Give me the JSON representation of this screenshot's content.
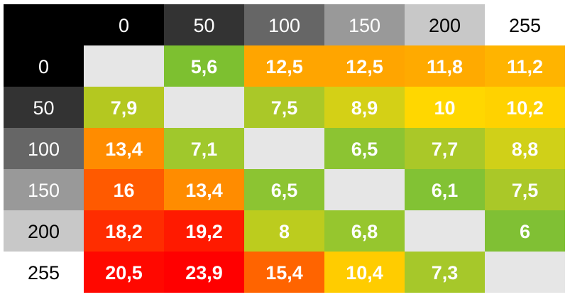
{
  "chart_data": {
    "type": "heatmap",
    "column_labels": [
      "0",
      "50",
      "100",
      "150",
      "200",
      "255"
    ],
    "row_labels": [
      "0",
      "50",
      "100",
      "150",
      "200",
      "255"
    ],
    "header_colors": {
      "0": "#000000",
      "50": "#333333",
      "100": "#666666",
      "150": "#999999",
      "200": "#c8c8c8",
      "255": "#ffffff"
    },
    "header_text_colors": {
      "0": "#ffffff",
      "50": "#ffffff",
      "100": "#ffffff",
      "150": "#ffffff",
      "200": "#000000",
      "255": "#000000"
    },
    "diagonal_color": "#e6e6e6",
    "cell_text_color": "#ffffff",
    "rows": [
      {
        "label": "0",
        "cells": [
          {
            "text": "",
            "color": "#e6e6e6"
          },
          {
            "text": "5,6",
            "color": "#7dc030"
          },
          {
            "text": "12,5",
            "color": "#ffa500"
          },
          {
            "text": "12,5",
            "color": "#ffa500"
          },
          {
            "text": "11,8",
            "color": "#ffaa00"
          },
          {
            "text": "11,2",
            "color": "#ffb400"
          }
        ]
      },
      {
        "label": "50",
        "cells": [
          {
            "text": "7,9",
            "color": "#b4c820"
          },
          {
            "text": "",
            "color": "#e6e6e6"
          },
          {
            "text": "7,5",
            "color": "#aac828"
          },
          {
            "text": "8,9",
            "color": "#d4d016"
          },
          {
            "text": "10",
            "color": "#ffd700"
          },
          {
            "text": "10,2",
            "color": "#ffd200"
          }
        ]
      },
      {
        "label": "100",
        "cells": [
          {
            "text": "13,4",
            "color": "#ff8c00"
          },
          {
            "text": "7,1",
            "color": "#a0c82c"
          },
          {
            "text": "",
            "color": "#e6e6e6"
          },
          {
            "text": "6,5",
            "color": "#8cc432"
          },
          {
            "text": "7,7",
            "color": "#aac828"
          },
          {
            "text": "8,8",
            "color": "#d0d018"
          }
        ]
      },
      {
        "label": "150",
        "cells": [
          {
            "text": "16",
            "color": "#ff5a00"
          },
          {
            "text": "13,4",
            "color": "#ff8c00"
          },
          {
            "text": "6,5",
            "color": "#8cc432"
          },
          {
            "text": "",
            "color": "#e6e6e6"
          },
          {
            "text": "6,1",
            "color": "#82c234"
          },
          {
            "text": "7,5",
            "color": "#aac828"
          }
        ]
      },
      {
        "label": "200",
        "cells": [
          {
            "text": "18,2",
            "color": "#ff2d00"
          },
          {
            "text": "19,2",
            "color": "#ff1a00"
          },
          {
            "text": "8",
            "color": "#bccc1e"
          },
          {
            "text": "6,8",
            "color": "#96c62e"
          },
          {
            "text": "",
            "color": "#e6e6e6"
          },
          {
            "text": "6",
            "color": "#80c034"
          }
        ]
      },
      {
        "label": "255",
        "cells": [
          {
            "text": "20,5",
            "color": "#ff0800"
          },
          {
            "text": "23,9",
            "color": "#ff0000"
          },
          {
            "text": "15,4",
            "color": "#ff6400"
          },
          {
            "text": "10,4",
            "color": "#ffcc00"
          },
          {
            "text": "7,3",
            "color": "#a6c82a"
          },
          {
            "text": "",
            "color": "#e6e6e6"
          }
        ]
      }
    ]
  }
}
